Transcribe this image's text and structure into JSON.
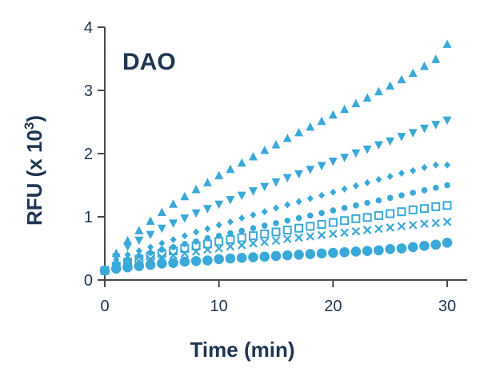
{
  "chart_data": {
    "type": "scatter",
    "title": "DAO",
    "xlabel": "Time (min)",
    "ylabel_main": "RFU (x 10",
    "ylabel_exp": "3",
    "ylabel_close": ")",
    "xlim": [
      0,
      30
    ],
    "ylim": [
      0,
      4
    ],
    "xticks": [
      0,
      10,
      20,
      30
    ],
    "yticks": [
      0,
      1,
      2,
      3,
      4
    ],
    "grid": false,
    "legend": "none",
    "marker_color": "#3aa9d9",
    "x": [
      0,
      1,
      2,
      3,
      4,
      5,
      6,
      7,
      8,
      9,
      10,
      11,
      12,
      13,
      14,
      15,
      16,
      17,
      18,
      19,
      20,
      21,
      22,
      23,
      24,
      25,
      26,
      27,
      28,
      29,
      30
    ],
    "series": [
      {
        "marker": "triangle-up",
        "values": [
          0.15,
          0.42,
          0.62,
          0.78,
          0.93,
          1.07,
          1.2,
          1.32,
          1.43,
          1.54,
          1.65,
          1.75,
          1.85,
          1.95,
          2.05,
          2.14,
          2.24,
          2.33,
          2.42,
          2.51,
          2.61,
          2.7,
          2.79,
          2.88,
          2.98,
          3.07,
          3.17,
          3.27,
          3.38,
          3.49,
          3.73
        ]
      },
      {
        "marker": "triangle-down",
        "values": [
          0.15,
          0.36,
          0.53,
          0.63,
          0.72,
          0.82,
          0.9,
          0.98,
          1.06,
          1.13,
          1.2,
          1.27,
          1.34,
          1.41,
          1.48,
          1.55,
          1.62,
          1.68,
          1.75,
          1.81,
          1.88,
          1.94,
          2.01,
          2.07,
          2.14,
          2.2,
          2.27,
          2.33,
          2.4,
          2.46,
          2.53
        ]
      },
      {
        "marker": "diamond",
        "values": [
          0.15,
          0.32,
          0.4,
          0.46,
          0.52,
          0.58,
          0.64,
          0.7,
          0.76,
          0.81,
          0.87,
          0.92,
          0.98,
          1.03,
          1.08,
          1.14,
          1.19,
          1.24,
          1.29,
          1.34,
          1.39,
          1.44,
          1.49,
          1.54,
          1.59,
          1.64,
          1.69,
          1.73,
          1.78,
          1.82,
          1.82
        ]
      },
      {
        "marker": "circle-small",
        "values": [
          0.15,
          0.26,
          0.33,
          0.38,
          0.43,
          0.48,
          0.52,
          0.57,
          0.61,
          0.66,
          0.7,
          0.74,
          0.78,
          0.82,
          0.86,
          0.9,
          0.94,
          0.98,
          1.02,
          1.06,
          1.1,
          1.14,
          1.18,
          1.22,
          1.26,
          1.3,
          1.34,
          1.38,
          1.42,
          1.46,
          1.5
        ]
      },
      {
        "marker": "square-open",
        "values": [
          0.15,
          0.22,
          0.28,
          0.33,
          0.38,
          0.42,
          0.46,
          0.5,
          0.54,
          0.57,
          0.61,
          0.64,
          0.67,
          0.7,
          0.73,
          0.76,
          0.79,
          0.82,
          0.85,
          0.88,
          0.91,
          0.94,
          0.97,
          0.99,
          1.02,
          1.05,
          1.08,
          1.11,
          1.13,
          1.16,
          1.18
        ]
      },
      {
        "marker": "cross",
        "values": [
          0.15,
          0.2,
          0.25,
          0.29,
          0.33,
          0.36,
          0.39,
          0.42,
          0.45,
          0.48,
          0.5,
          0.53,
          0.55,
          0.58,
          0.6,
          0.62,
          0.65,
          0.67,
          0.69,
          0.71,
          0.73,
          0.75,
          0.77,
          0.79,
          0.81,
          0.83,
          0.85,
          0.87,
          0.89,
          0.9,
          0.92
        ]
      },
      {
        "marker": "circle-large",
        "values": [
          0.15,
          0.18,
          0.2,
          0.22,
          0.24,
          0.26,
          0.27,
          0.29,
          0.3,
          0.31,
          0.33,
          0.34,
          0.35,
          0.36,
          0.37,
          0.38,
          0.39,
          0.4,
          0.41,
          0.42,
          0.43,
          0.44,
          0.45,
          0.46,
          0.47,
          0.49,
          0.5,
          0.52,
          0.54,
          0.56,
          0.59
        ]
      }
    ]
  }
}
